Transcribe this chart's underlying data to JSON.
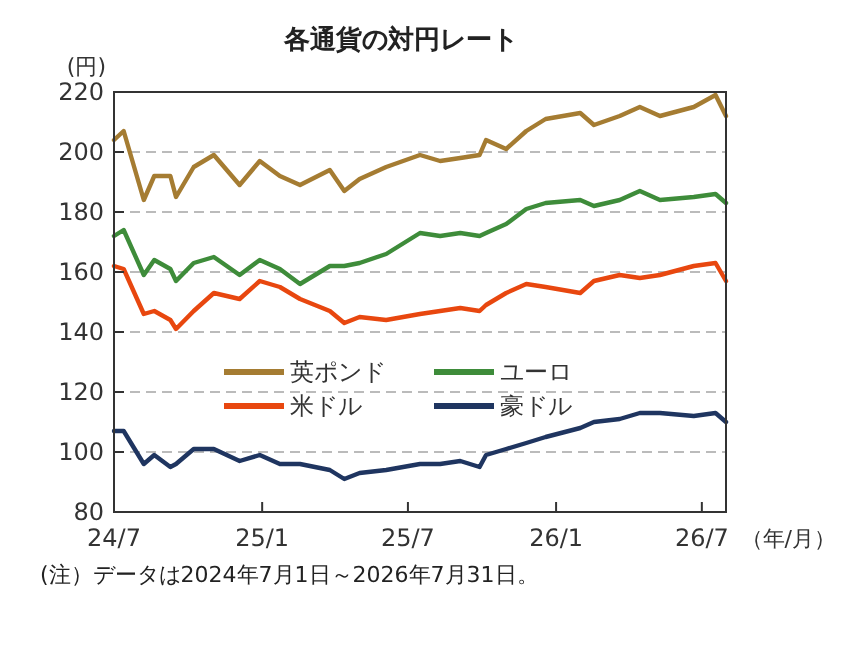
{
  "chart_data": {
    "type": "line",
    "title": "各通貨の対円レート",
    "ylabel": "(円)",
    "xlabel": "（年/月）",
    "x": [
      "2024-07-01",
      "2024-07-13",
      "2024-08-07",
      "2024-08-20",
      "2024-09-09",
      "2024-09-16",
      "2024-10-08",
      "2024-11-02",
      "2024-12-04",
      "2024-12-29",
      "2025-01-23",
      "2025-02-17",
      "2025-03-26",
      "2025-04-13",
      "2025-05-02",
      "2025-06-04",
      "2025-07-16",
      "2025-08-10",
      "2025-09-04",
      "2025-09-28",
      "2025-10-06",
      "2025-10-31",
      "2025-11-25",
      "2025-12-19",
      "2026-01-31",
      "2026-02-17",
      "2026-03-21",
      "2026-04-15",
      "2026-05-10",
      "2026-06-21",
      "2026-07-18",
      "2026-07-31"
    ],
    "xlim": [
      "2024-07-01",
      "2026-07-31"
    ],
    "xticks": [
      {
        "value": "2024-07-01",
        "label": "24/7"
      },
      {
        "value": "2025-01-01",
        "label": "25/1"
      },
      {
        "value": "2025-07-01",
        "label": "25/7"
      },
      {
        "value": "2026-01-01",
        "label": "26/1"
      },
      {
        "value": "2026-07-01",
        "label": "26/7"
      }
    ],
    "ylim": [
      80,
      220
    ],
    "yticks": [
      80,
      100,
      120,
      140,
      160,
      180,
      200,
      220
    ],
    "grid": "y",
    "legend": "left",
    "line_style": "solid",
    "series": [
      {
        "name": "英ポンド",
        "color": "#a57c32",
        "values": [
          204,
          207,
          184,
          192,
          192,
          185,
          195,
          199,
          189,
          197,
          192,
          189,
          194,
          187,
          191,
          195,
          199,
          197,
          198,
          199,
          204,
          201,
          207,
          211,
          213,
          209,
          212,
          215,
          212,
          215,
          219,
          212
        ]
      },
      {
        "name": "ユーロ",
        "color": "#3e8c3a",
        "values": [
          172,
          174,
          159,
          164,
          161,
          157,
          163,
          165,
          159,
          164,
          161,
          156,
          162,
          162,
          163,
          166,
          173,
          172,
          173,
          172,
          173,
          176,
          181,
          183,
          184,
          182,
          184,
          187,
          184,
          185,
          186,
          183
        ]
      },
      {
        "name": "米ドル",
        "color": "#e8470f",
        "values": [
          162,
          161,
          146,
          147,
          144,
          141,
          147,
          153,
          151,
          157,
          155,
          151,
          147,
          143,
          145,
          144,
          146,
          147,
          148,
          147,
          149,
          153,
          156,
          155,
          153,
          157,
          159,
          158,
          159,
          162,
          163,
          157
        ]
      },
      {
        "name": "豪ドル",
        "color": "#1f3560",
        "values": [
          107,
          107,
          96,
          99,
          95,
          96,
          101,
          101,
          97,
          99,
          96,
          96,
          94,
          91,
          93,
          94,
          96,
          96,
          97,
          95,
          99,
          101,
          103,
          105,
          108,
          110,
          111,
          113,
          113,
          112,
          113,
          110
        ]
      }
    ],
    "annotations": [
      "(注）データは2024年7月1日～2026年7月31日。"
    ]
  }
}
